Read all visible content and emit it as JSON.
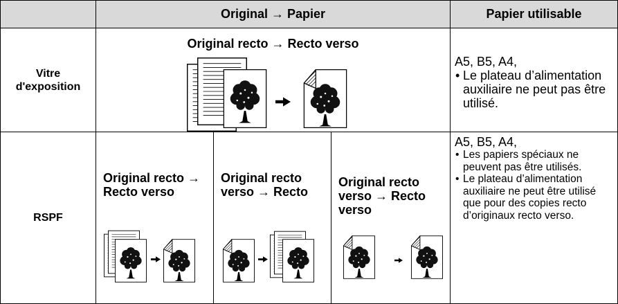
{
  "table": {
    "header": [
      "",
      "Original → Papier",
      "Papier utilisable"
    ],
    "rows": [
      {
        "label": [
          "Vitre",
          "d'exposition"
        ],
        "modes": [
          "Original recto → Recto verso"
        ],
        "paper": "A5, B5, A4,",
        "notes": [
          "Le plateau d’alimentation auxiliaire ne peut pas être utilisé."
        ]
      },
      {
        "label": [
          "RSPF"
        ],
        "modes": [
          "Original recto → Recto verso",
          "Original recto verso → Recto",
          "Original recto verso → Recto verso"
        ],
        "paper": "A5, B5, A4,",
        "notes": [
          "Les papiers spéciaux ne peuvent pas être utilisés.",
          "Le plateau d’alimentation auxiliaire ne peut être utilisé que pour des copies recto d’originaux recto verso."
        ]
      }
    ]
  }
}
